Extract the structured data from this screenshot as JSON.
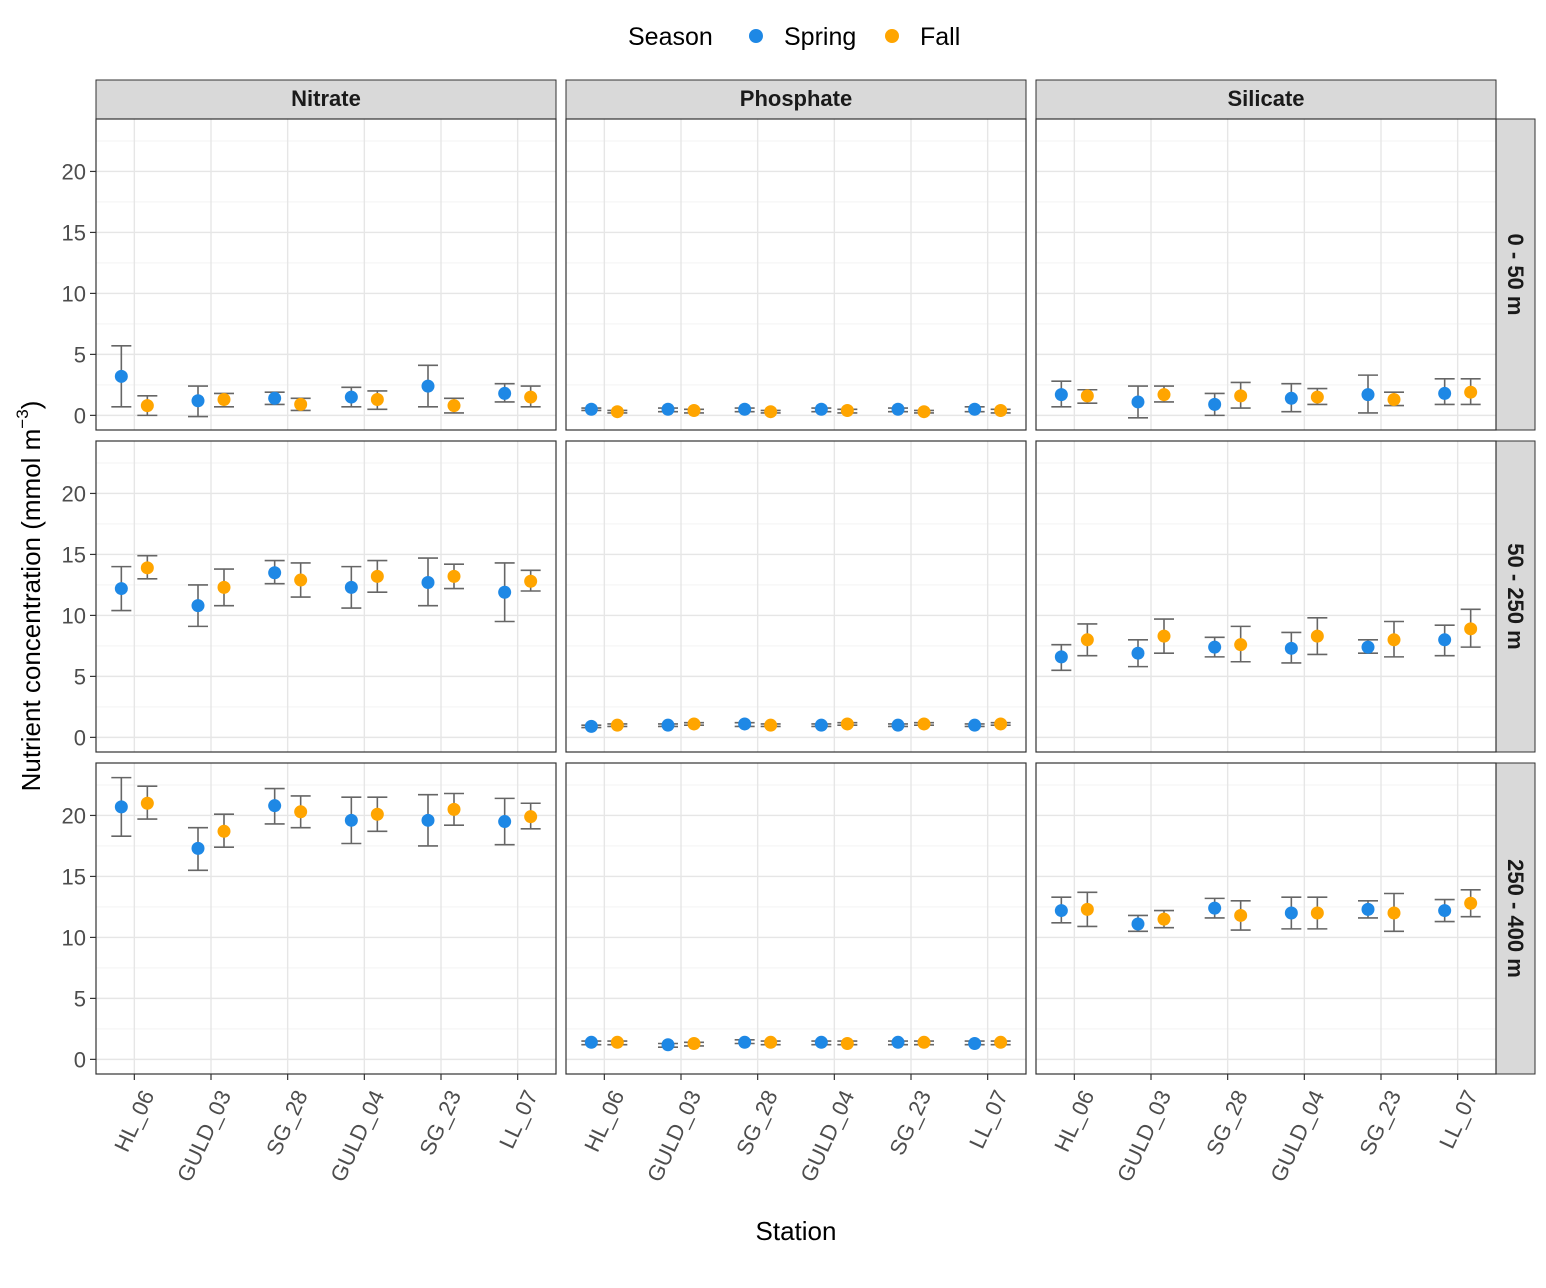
{
  "chart_data": {
    "type": "scatter",
    "subtype": "faceted-point-with-errorbars",
    "xlabel": "Station",
    "ylabel": "Nutrient concentration  (mmol m",
    "ylabel_superscript": "−3",
    "ylabel_close": ")",
    "ylim": [
      -1.2,
      24.3
    ],
    "yticks": [
      0,
      5,
      10,
      15,
      20
    ],
    "ytick_labels": [
      "0",
      "5",
      "10",
      "15",
      "20"
    ],
    "grid": true,
    "legend": {
      "title": "Season",
      "placement": "top",
      "entries": [
        {
          "name": "Spring",
          "color": "#1E88E5"
        },
        {
          "name": "Fall",
          "color": "#FFA500"
        }
      ]
    },
    "colors": {
      "Spring": "#1E88E5",
      "Fall": "#FFA500",
      "errorbar": "#666666",
      "strip": "#D9D9D9"
    },
    "stations": [
      "HL_06",
      "GULD_03",
      "SG_28",
      "GULD_04",
      "SG_23",
      "LL_07"
    ],
    "columns": [
      "Nitrate",
      "Phosphate",
      "Silicate"
    ],
    "rows": [
      "0 - 50 m",
      "50 - 250 m",
      "250 - 400 m"
    ],
    "panels": [
      {
        "column": "Nitrate",
        "row": "0 - 50 m",
        "series": [
          {
            "name": "Spring",
            "mean": [
              3.2,
              1.2,
              1.4,
              1.5,
              2.4,
              1.8
            ],
            "lower": [
              0.7,
              -0.1,
              0.9,
              0.7,
              0.7,
              1.1
            ],
            "upper": [
              5.7,
              2.4,
              1.9,
              2.3,
              4.1,
              2.6
            ]
          },
          {
            "name": "Fall",
            "mean": [
              0.8,
              1.3,
              0.9,
              1.3,
              0.8,
              1.5
            ],
            "lower": [
              0.0,
              0.7,
              0.4,
              0.5,
              0.2,
              0.7
            ],
            "upper": [
              1.6,
              1.8,
              1.4,
              2.0,
              1.4,
              2.4
            ]
          }
        ]
      },
      {
        "column": "Phosphate",
        "row": "0 - 50 m",
        "series": [
          {
            "name": "Spring",
            "mean": [
              0.5,
              0.5,
              0.5,
              0.5,
              0.5,
              0.5
            ],
            "lower": [
              0.4,
              0.3,
              0.3,
              0.3,
              0.3,
              0.3
            ],
            "upper": [
              0.6,
              0.6,
              0.6,
              0.6,
              0.6,
              0.7
            ]
          },
          {
            "name": "Fall",
            "mean": [
              0.3,
              0.4,
              0.3,
              0.4,
              0.3,
              0.4
            ],
            "lower": [
              0.2,
              0.2,
              0.2,
              0.2,
              0.2,
              0.2
            ],
            "upper": [
              0.4,
              0.5,
              0.4,
              0.5,
              0.4,
              0.5
            ]
          }
        ]
      },
      {
        "column": "Silicate",
        "row": "0 - 50 m",
        "series": [
          {
            "name": "Spring",
            "mean": [
              1.7,
              1.1,
              0.9,
              1.4,
              1.7,
              1.8
            ],
            "lower": [
              0.7,
              -0.2,
              0.0,
              0.3,
              0.2,
              0.9
            ],
            "upper": [
              2.8,
              2.4,
              1.8,
              2.6,
              3.3,
              3.0
            ]
          },
          {
            "name": "Fall",
            "mean": [
              1.6,
              1.7,
              1.6,
              1.5,
              1.3,
              1.9
            ],
            "lower": [
              1.0,
              1.1,
              0.6,
              0.9,
              0.8,
              0.9
            ],
            "upper": [
              2.1,
              2.4,
              2.7,
              2.2,
              1.9,
              3.0
            ]
          }
        ]
      },
      {
        "column": "Nitrate",
        "row": "50 - 250 m",
        "series": [
          {
            "name": "Spring",
            "mean": [
              12.2,
              10.8,
              13.5,
              12.3,
              12.7,
              11.9
            ],
            "lower": [
              10.4,
              9.1,
              12.6,
              10.6,
              10.8,
              9.5
            ],
            "upper": [
              14.0,
              12.5,
              14.5,
              14.0,
              14.7,
              14.3
            ]
          },
          {
            "name": "Fall",
            "mean": [
              13.9,
              12.3,
              12.9,
              13.2,
              13.2,
              12.8
            ],
            "lower": [
              13.0,
              10.8,
              11.5,
              11.9,
              12.2,
              12.0
            ],
            "upper": [
              14.9,
              13.8,
              14.3,
              14.5,
              14.2,
              13.7
            ]
          }
        ]
      },
      {
        "column": "Phosphate",
        "row": "50 - 250 m",
        "series": [
          {
            "name": "Spring",
            "mean": [
              0.9,
              1.0,
              1.1,
              1.0,
              1.0,
              1.0
            ],
            "lower": [
              0.8,
              0.9,
              0.9,
              0.9,
              0.9,
              0.9
            ],
            "upper": [
              1.0,
              1.1,
              1.2,
              1.1,
              1.1,
              1.1
            ]
          },
          {
            "name": "Fall",
            "mean": [
              1.0,
              1.1,
              1.0,
              1.1,
              1.1,
              1.1
            ],
            "lower": [
              0.9,
              1.0,
              0.9,
              1.0,
              1.0,
              1.0
            ],
            "upper": [
              1.1,
              1.2,
              1.1,
              1.2,
              1.2,
              1.2
            ]
          }
        ]
      },
      {
        "column": "Silicate",
        "row": "50 - 250 m",
        "series": [
          {
            "name": "Spring",
            "mean": [
              6.6,
              6.9,
              7.4,
              7.3,
              7.4,
              8.0
            ],
            "lower": [
              5.5,
              5.8,
              6.6,
              6.1,
              6.9,
              6.7
            ],
            "upper": [
              7.6,
              8.0,
              8.2,
              8.6,
              8.0,
              9.2
            ]
          },
          {
            "name": "Fall",
            "mean": [
              8.0,
              8.3,
              7.6,
              8.3,
              8.0,
              8.9
            ],
            "lower": [
              6.7,
              6.9,
              6.2,
              6.8,
              6.6,
              7.4
            ],
            "upper": [
              9.3,
              9.7,
              9.1,
              9.8,
              9.5,
              10.5
            ]
          }
        ]
      },
      {
        "column": "Nitrate",
        "row": "250 - 400 m",
        "series": [
          {
            "name": "Spring",
            "mean": [
              20.7,
              17.3,
              20.8,
              19.6,
              19.6,
              19.5
            ],
            "lower": [
              18.3,
              15.5,
              19.3,
              17.7,
              17.5,
              17.6
            ],
            "upper": [
              23.1,
              19.0,
              22.2,
              21.5,
              21.7,
              21.4
            ]
          },
          {
            "name": "Fall",
            "mean": [
              21.0,
              18.7,
              20.3,
              20.1,
              20.5,
              19.9
            ],
            "lower": [
              19.7,
              17.4,
              19.0,
              18.7,
              19.2,
              18.9
            ],
            "upper": [
              22.4,
              20.1,
              21.6,
              21.5,
              21.8,
              21.0
            ]
          }
        ]
      },
      {
        "column": "Phosphate",
        "row": "250 - 400 m",
        "series": [
          {
            "name": "Spring",
            "mean": [
              1.4,
              1.2,
              1.4,
              1.4,
              1.4,
              1.3
            ],
            "lower": [
              1.2,
              1.0,
              1.3,
              1.2,
              1.2,
              1.2
            ],
            "upper": [
              1.5,
              1.3,
              1.6,
              1.5,
              1.5,
              1.5
            ]
          },
          {
            "name": "Fall",
            "mean": [
              1.4,
              1.3,
              1.4,
              1.3,
              1.4,
              1.4
            ],
            "lower": [
              1.2,
              1.1,
              1.2,
              1.2,
              1.2,
              1.2
            ],
            "upper": [
              1.5,
              1.4,
              1.5,
              1.5,
              1.5,
              1.5
            ]
          }
        ]
      },
      {
        "column": "Silicate",
        "row": "250 - 400 m",
        "series": [
          {
            "name": "Spring",
            "mean": [
              12.2,
              11.1,
              12.4,
              12.0,
              12.3,
              12.2
            ],
            "lower": [
              11.2,
              10.5,
              11.6,
              10.7,
              11.6,
              11.3
            ],
            "upper": [
              13.3,
              11.8,
              13.2,
              13.3,
              13.0,
              13.1
            ]
          },
          {
            "name": "Fall",
            "mean": [
              12.3,
              11.5,
              11.8,
              12.0,
              12.0,
              12.8
            ],
            "lower": [
              10.9,
              10.8,
              10.6,
              10.7,
              10.5,
              11.7
            ],
            "upper": [
              13.7,
              12.2,
              13.0,
              13.3,
              13.6,
              13.9
            ]
          }
        ]
      }
    ]
  }
}
